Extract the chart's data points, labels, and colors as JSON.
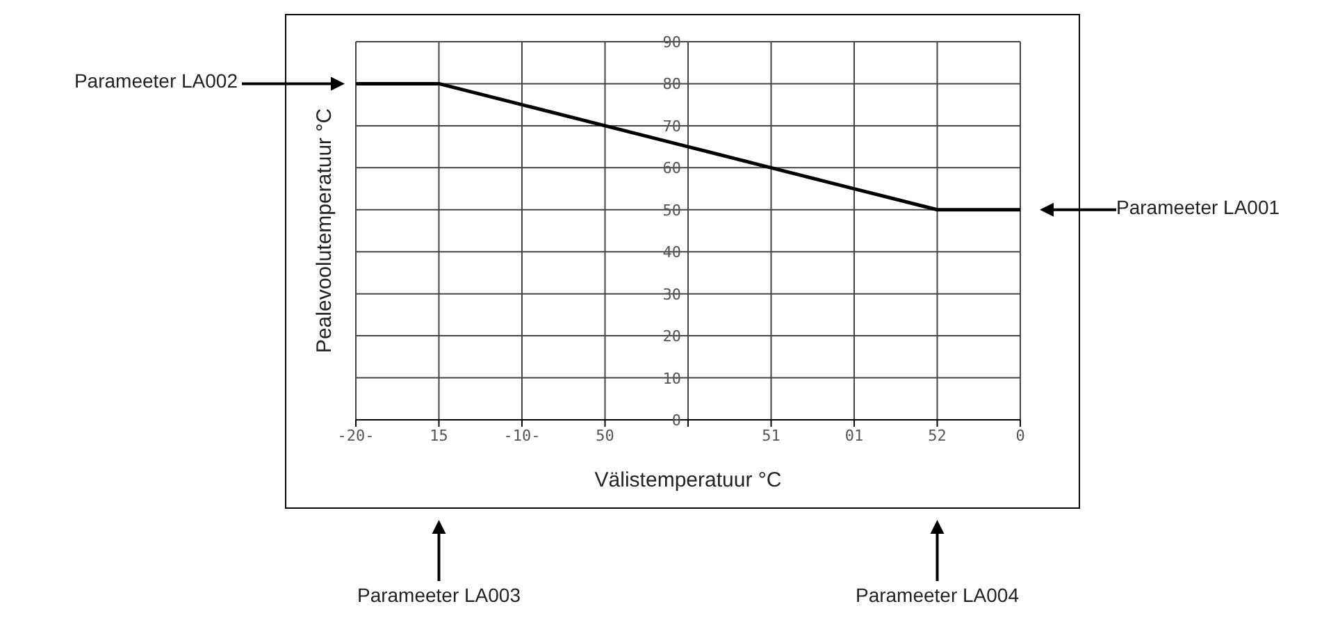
{
  "chart_data": {
    "type": "line",
    "xlabel": "Välistemperatuur °C",
    "ylabel": "Pealevoolutemperatuur °C",
    "categories": [
      "-20-",
      "15",
      "-10-",
      "50",
      null,
      "51",
      "01",
      "52",
      "0"
    ],
    "series": [
      {
        "color": "#000000",
        "values": [
          80,
          80,
          75,
          70,
          65,
          60,
          55,
          50,
          50
        ]
      }
    ],
    "ylim": [
      0,
      90
    ],
    "yticks": [
      0,
      10,
      20,
      30,
      40,
      50,
      60,
      70,
      80,
      90
    ],
    "grid": true,
    "marker": "none",
    "line_style": "solid",
    "annotations": [
      "Parameeter LA002",
      "Parameeter LA001",
      "Parameeter LA003",
      "Parameeter LA004"
    ]
  }
}
